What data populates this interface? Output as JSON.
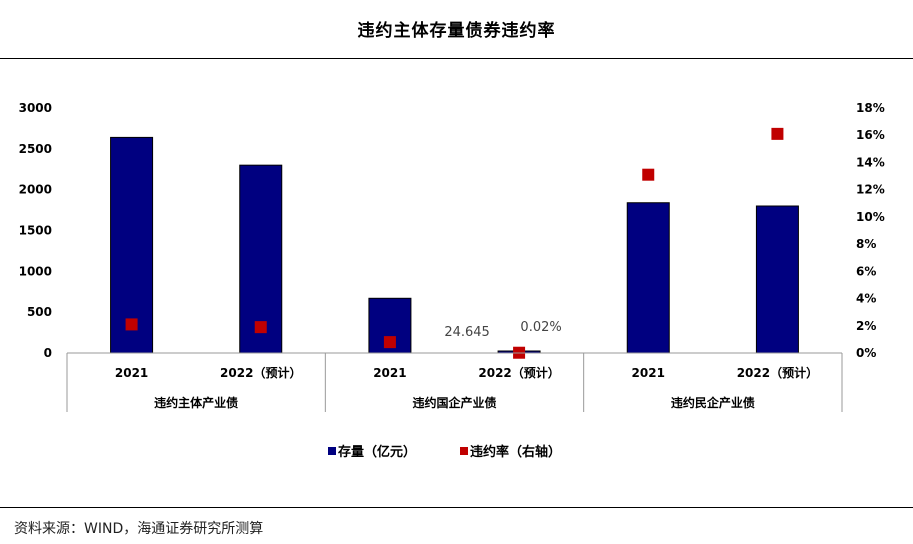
{
  "title": "违约主体存量债券违约率",
  "source": "资料来源：WIND，海通证券研究所测算",
  "chart_data": {
    "type": "bar",
    "groups": [
      "违约主体产业债",
      "违约国企产业债",
      "违约民企产业债"
    ],
    "categories": [
      "2021",
      "2022（预计）",
      "2021",
      "2022（预计）",
      "2021",
      "2022（预计）"
    ],
    "series": [
      {
        "name": "存量（亿元）",
        "type": "bar",
        "axis": "left",
        "color": "#000080",
        "values": [
          2640,
          2300,
          670,
          24.645,
          1840,
          1800
        ]
      },
      {
        "name": "违约率（右轴）",
        "type": "scatter",
        "axis": "right",
        "color": "#C00000",
        "values": [
          2.1,
          1.9,
          0.8,
          0.02,
          13.1,
          16.1
        ]
      }
    ],
    "data_labels": [
      {
        "index": 3,
        "series": 0,
        "text": "24.645"
      },
      {
        "index": 3,
        "series": 1,
        "text": "0.02%"
      }
    ],
    "ylim_left": [
      0,
      3000
    ],
    "yticks_left": [
      "0",
      "500",
      "1000",
      "1500",
      "2000",
      "2500",
      "3000"
    ],
    "ylim_right": [
      0,
      18
    ],
    "yticks_right": [
      "0%",
      "2%",
      "4%",
      "6%",
      "8%",
      "10%",
      "12%",
      "14%",
      "16%",
      "18%"
    ],
    "legend_position": "bottom",
    "grid": false
  }
}
